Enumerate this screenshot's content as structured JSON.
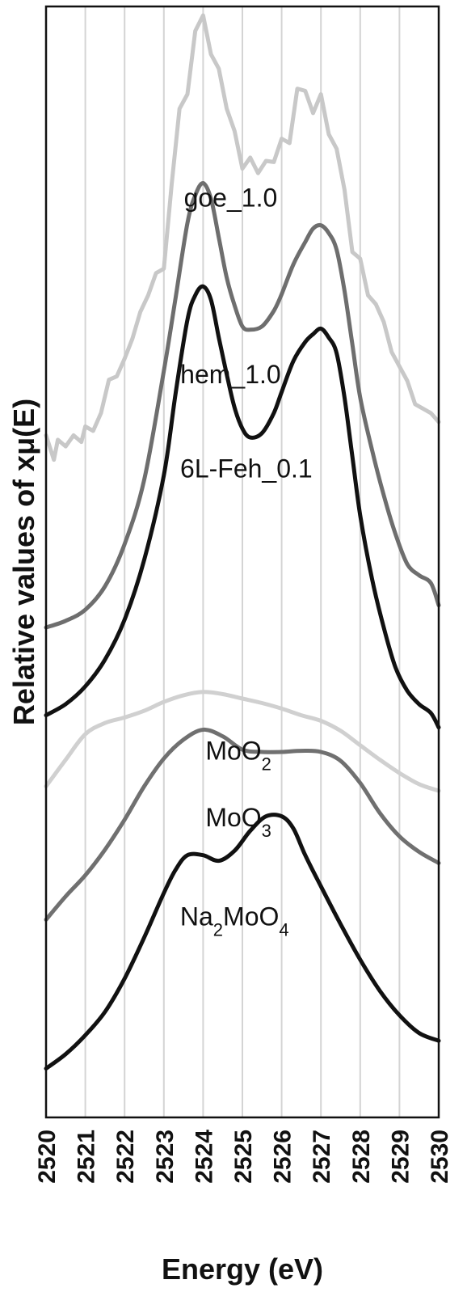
{
  "chart_data": {
    "type": "line",
    "xlabel": "Energy (eV)",
    "ylabel": "Relative values of xμ(E)",
    "xlim": [
      2520,
      2530
    ],
    "ylim": [
      0,
      100
    ],
    "x_ticks": [
      "2520",
      "2521",
      "2522",
      "2523",
      "2524",
      "2525",
      "2526",
      "2527",
      "2528",
      "2529",
      "2530"
    ],
    "grid": "vertical",
    "y_ticks": "none",
    "series": [
      {
        "name": "goe_1.0",
        "color": "#c8c8c8",
        "points": [
          [
            2520.0,
            61.4
          ],
          [
            2520.2,
            59.2
          ],
          [
            2520.3,
            61.0
          ],
          [
            2520.5,
            60.4
          ],
          [
            2520.7,
            61.4
          ],
          [
            2520.9,
            60.8
          ],
          [
            2521.0,
            62.2
          ],
          [
            2521.2,
            61.8
          ],
          [
            2521.4,
            63.4
          ],
          [
            2521.6,
            66.4
          ],
          [
            2521.8,
            66.7
          ],
          [
            2522.0,
            68.3
          ],
          [
            2522.2,
            70.1
          ],
          [
            2522.4,
            72.5
          ],
          [
            2522.6,
            74.0
          ],
          [
            2522.8,
            76.0
          ],
          [
            2523.0,
            76.4
          ],
          [
            2523.2,
            84.0
          ],
          [
            2523.4,
            90.8
          ],
          [
            2523.6,
            92.1
          ],
          [
            2523.8,
            97.8
          ],
          [
            2524.0,
            99.2
          ],
          [
            2524.2,
            95.7
          ],
          [
            2524.4,
            94.4
          ],
          [
            2524.6,
            90.8
          ],
          [
            2524.8,
            88.8
          ],
          [
            2525.0,
            85.4
          ],
          [
            2525.2,
            86.4
          ],
          [
            2525.4,
            85.0
          ],
          [
            2525.6,
            86.1
          ],
          [
            2525.8,
            86.0
          ],
          [
            2526.0,
            88.1
          ],
          [
            2526.2,
            87.7
          ],
          [
            2526.4,
            92.6
          ],
          [
            2526.6,
            92.4
          ],
          [
            2526.8,
            90.4
          ],
          [
            2527.0,
            92.1
          ],
          [
            2527.2,
            88.5
          ],
          [
            2527.4,
            87.2
          ],
          [
            2527.6,
            83.5
          ],
          [
            2527.8,
            77.9
          ],
          [
            2528.0,
            77.3
          ],
          [
            2528.2,
            74.0
          ],
          [
            2528.4,
            73.2
          ],
          [
            2528.6,
            71.6
          ],
          [
            2528.8,
            68.9
          ],
          [
            2529.0,
            67.6
          ],
          [
            2529.2,
            66.3
          ],
          [
            2529.4,
            64.2
          ],
          [
            2529.6,
            63.8
          ],
          [
            2529.8,
            63.4
          ],
          [
            2530.0,
            62.6
          ]
        ]
      },
      {
        "name": "hem_1.0",
        "color": "#6e6e6e",
        "points": [
          [
            2520.0,
            44.1
          ],
          [
            2520.5,
            44.7
          ],
          [
            2521.0,
            45.7
          ],
          [
            2521.5,
            47.8
          ],
          [
            2522.0,
            51.6
          ],
          [
            2522.5,
            57.4
          ],
          [
            2523.0,
            67.2
          ],
          [
            2523.3,
            73.8
          ],
          [
            2523.6,
            80.5
          ],
          [
            2523.8,
            83.0
          ],
          [
            2524.0,
            84.1
          ],
          [
            2524.2,
            82.7
          ],
          [
            2524.4,
            79.2
          ],
          [
            2524.6,
            75.6
          ],
          [
            2524.8,
            73.1
          ],
          [
            2525.0,
            71.2
          ],
          [
            2525.2,
            70.9
          ],
          [
            2525.5,
            71.2
          ],
          [
            2525.8,
            72.6
          ],
          [
            2526.0,
            74.1
          ],
          [
            2526.3,
            76.8
          ],
          [
            2526.6,
            78.8
          ],
          [
            2526.8,
            80.0
          ],
          [
            2527.0,
            80.3
          ],
          [
            2527.2,
            79.6
          ],
          [
            2527.4,
            78.1
          ],
          [
            2527.6,
            74.4
          ],
          [
            2527.8,
            69.6
          ],
          [
            2528.0,
            64.8
          ],
          [
            2528.3,
            60.1
          ],
          [
            2528.6,
            56.0
          ],
          [
            2528.9,
            52.5
          ],
          [
            2529.2,
            49.8
          ],
          [
            2529.5,
            48.8
          ],
          [
            2529.8,
            48.1
          ],
          [
            2530.0,
            46.1
          ]
        ]
      },
      {
        "name": "6L-Feh_0.1",
        "color": "#111111",
        "points": [
          [
            2520.0,
            36.2
          ],
          [
            2520.5,
            37.2
          ],
          [
            2521.0,
            38.8
          ],
          [
            2521.5,
            41.2
          ],
          [
            2522.0,
            44.8
          ],
          [
            2522.5,
            50.2
          ],
          [
            2523.0,
            57.8
          ],
          [
            2523.3,
            65.2
          ],
          [
            2523.6,
            71.8
          ],
          [
            2523.8,
            74.0
          ],
          [
            2524.0,
            74.8
          ],
          [
            2524.2,
            73.6
          ],
          [
            2524.4,
            70.2
          ],
          [
            2524.6,
            66.9
          ],
          [
            2524.8,
            63.9
          ],
          [
            2525.0,
            62.0
          ],
          [
            2525.2,
            61.2
          ],
          [
            2525.5,
            61.6
          ],
          [
            2525.8,
            63.4
          ],
          [
            2526.0,
            65.3
          ],
          [
            2526.3,
            68.1
          ],
          [
            2526.6,
            69.8
          ],
          [
            2526.8,
            70.5
          ],
          [
            2527.0,
            71.0
          ],
          [
            2527.2,
            70.2
          ],
          [
            2527.4,
            68.8
          ],
          [
            2527.6,
            64.8
          ],
          [
            2527.8,
            59.5
          ],
          [
            2528.0,
            54.2
          ],
          [
            2528.3,
            48.5
          ],
          [
            2528.6,
            44.1
          ],
          [
            2528.9,
            40.5
          ],
          [
            2529.2,
            38.4
          ],
          [
            2529.5,
            37.2
          ],
          [
            2529.8,
            36.4
          ],
          [
            2530.0,
            35.1
          ]
        ]
      },
      {
        "name": "MoO2",
        "color": "#d0d0d0",
        "points": [
          [
            2520.0,
            29.8
          ],
          [
            2520.5,
            32.2
          ],
          [
            2521.0,
            34.5
          ],
          [
            2521.5,
            35.5
          ],
          [
            2522.0,
            36.0
          ],
          [
            2522.5,
            36.6
          ],
          [
            2523.0,
            37.4
          ],
          [
            2523.5,
            38.0
          ],
          [
            2524.0,
            38.3
          ],
          [
            2524.5,
            38.1
          ],
          [
            2525.0,
            37.7
          ],
          [
            2525.5,
            37.3
          ],
          [
            2526.0,
            36.8
          ],
          [
            2526.5,
            36.2
          ],
          [
            2527.0,
            35.7
          ],
          [
            2527.5,
            34.8
          ],
          [
            2528.0,
            33.5
          ],
          [
            2528.5,
            32.2
          ],
          [
            2529.0,
            31.0
          ],
          [
            2529.5,
            30.0
          ],
          [
            2530.0,
            29.4
          ]
        ]
      },
      {
        "name": "MoO3",
        "color": "#707070",
        "points": [
          [
            2520.0,
            17.8
          ],
          [
            2520.5,
            19.9
          ],
          [
            2521.0,
            21.8
          ],
          [
            2521.5,
            24.1
          ],
          [
            2522.0,
            26.8
          ],
          [
            2522.5,
            29.8
          ],
          [
            2523.0,
            32.3
          ],
          [
            2523.5,
            34.0
          ],
          [
            2524.0,
            34.9
          ],
          [
            2524.5,
            34.3
          ],
          [
            2525.0,
            33.1
          ],
          [
            2525.5,
            32.9
          ],
          [
            2526.0,
            32.9
          ],
          [
            2526.5,
            33.0
          ],
          [
            2527.0,
            32.9
          ],
          [
            2527.5,
            32.1
          ],
          [
            2528.0,
            30.1
          ],
          [
            2528.5,
            27.4
          ],
          [
            2529.0,
            25.3
          ],
          [
            2529.5,
            23.9
          ],
          [
            2530.0,
            22.9
          ]
        ]
      },
      {
        "name": "Na2MoO4",
        "color": "#111111",
        "points": [
          [
            2520.0,
            4.4
          ],
          [
            2520.5,
            5.7
          ],
          [
            2521.0,
            7.4
          ],
          [
            2521.5,
            9.5
          ],
          [
            2522.0,
            12.5
          ],
          [
            2522.5,
            16.2
          ],
          [
            2523.0,
            20.2
          ],
          [
            2523.3,
            22.3
          ],
          [
            2523.6,
            23.6
          ],
          [
            2524.0,
            23.6
          ],
          [
            2524.4,
            23.1
          ],
          [
            2524.8,
            24.0
          ],
          [
            2525.2,
            25.8
          ],
          [
            2525.6,
            27.1
          ],
          [
            2526.0,
            27.1
          ],
          [
            2526.3,
            26.0
          ],
          [
            2526.6,
            23.6
          ],
          [
            2527.0,
            20.8
          ],
          [
            2527.5,
            17.4
          ],
          [
            2528.0,
            14.2
          ],
          [
            2528.5,
            11.4
          ],
          [
            2529.0,
            9.2
          ],
          [
            2529.5,
            7.6
          ],
          [
            2530.0,
            6.9
          ]
        ]
      }
    ],
    "annotations": [
      {
        "text": "goe_1.0",
        "x": 2524.7,
        "y": 82.0
      },
      {
        "text": "hem_1.0",
        "x": 2524.7,
        "y": 66.1
      },
      {
        "text": "6L-Feh_0.1",
        "x": 2525.1,
        "y": 57.6
      },
      {
        "text": "MoO",
        "sub": "2",
        "x": 2524.9,
        "y": 32.2
      },
      {
        "text": "MoO",
        "sub": "3",
        "x": 2524.9,
        "y": 26.2
      },
      {
        "text": "Na",
        "sub": "2",
        "rest": "MoO",
        "sub2": "4",
        "x": 2524.8,
        "y": 17.3
      }
    ]
  }
}
